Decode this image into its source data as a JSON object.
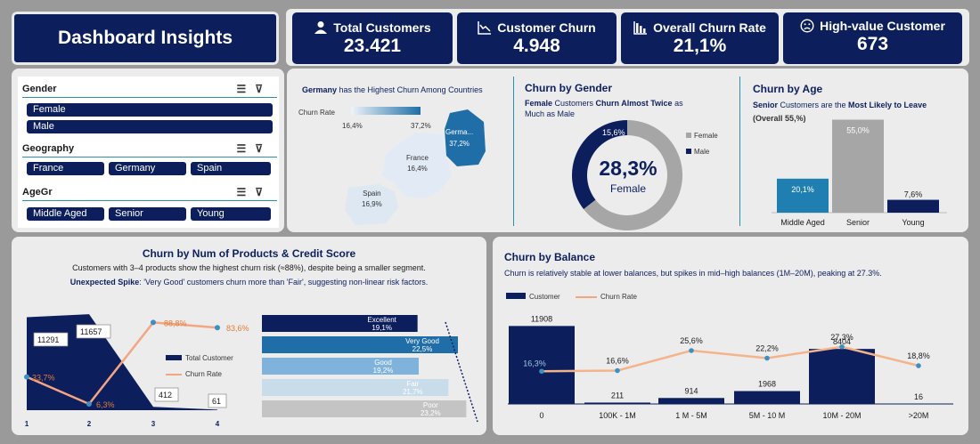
{
  "header": {
    "title": "Dashboard Insights"
  },
  "kpis": [
    {
      "label": "Total Customers",
      "value": "23.421",
      "icon": "person-icon"
    },
    {
      "label": "Customer Churn",
      "value": "4.948",
      "icon": "trend-down-icon"
    },
    {
      "label": "Overall Churn Rate",
      "value": "21,1%",
      "icon": "bar-chart-icon"
    },
    {
      "label": "High-value Customer",
      "value": "673",
      "icon": "sad-face-icon"
    }
  ],
  "slicers": {
    "gender": {
      "title": "Gender",
      "items": [
        "Female",
        "Male"
      ]
    },
    "geography": {
      "title": "Geography",
      "items": [
        "France",
        "Germany",
        "Spain"
      ]
    },
    "agegr": {
      "title": "AgeGr",
      "items": [
        "Middle Aged",
        "Senior",
        "Young"
      ]
    }
  },
  "map": {
    "title_bold": "Germany",
    "title_rest": " has the Highest Churn Among Countries",
    "legend_label": "Churn Rate",
    "legend_min": "16,4%",
    "legend_max": "37,2%",
    "regions": [
      {
        "name": "Germa...",
        "value": "37,2%"
      },
      {
        "name": "France",
        "value": "16,4%"
      },
      {
        "name": "Spain",
        "value": "16,9%"
      }
    ]
  },
  "gender_chart": {
    "title": "Churn by Gender",
    "sub_a": "Female",
    "sub_b": " Customers ",
    "sub_c": "Churn Almost Twice",
    "sub_d": " as",
    "sub_e": "Much as Male",
    "center_value": "28,3%",
    "center_label": "Female",
    "slice_label": "15,6%",
    "legend": [
      "Female",
      "Male"
    ]
  },
  "age_chart": {
    "title": "Churn by Age",
    "sub_a": "Senior",
    "sub_b": " Customers are the ",
    "sub_c": "Most Likely to Leave",
    "sub_d": "(Overall 55,%)"
  },
  "products_chart": {
    "title": "Churn by Num of Products & Credit Score",
    "line1": "Customers with 3–4 products show the highest churn risk (≈88%), despite being a smaller segment.",
    "line2_a": "Unexpected Spike",
    "line2_b": ": 'Very Good' customers churn more than 'Fair', suggesting non-linear risk factors.",
    "legend_total": "Total Customer",
    "legend_rate": "Churn Rate"
  },
  "balance_chart": {
    "title": "Churn by Balance",
    "sub_a": "Churn is ",
    "sub_b": "relatively stable at lower balances",
    "sub_c": ", but ",
    "sub_d": "spikes in mid–high balances (1M–20M)",
    "sub_e": ", peaking at 27.3%.",
    "legend_customer": "Customer",
    "legend_rate": "Churn Rate"
  },
  "chart_data": [
    {
      "type": "pie",
      "title": "Churn by Gender",
      "categories": [
        "Female",
        "Male"
      ],
      "values": [
        28.3,
        15.6
      ],
      "unit": "%"
    },
    {
      "type": "bar",
      "title": "Churn by Age",
      "categories": [
        "Middle Aged",
        "Senior",
        "Young"
      ],
      "values": [
        20.1,
        55.0,
        7.6
      ],
      "labels": [
        "20,1%",
        "55,0%",
        "7,6%"
      ],
      "colors": [
        "#1f7fb0",
        "#a6a6a6",
        "#0c1f5c"
      ],
      "ylim": [
        0,
        60
      ]
    },
    {
      "type": "line",
      "title": "Churn by Num of Products & Credit Score",
      "categories": [
        "1",
        "2",
        "3",
        "4"
      ],
      "series": [
        {
          "name": "Total Customer",
          "values": [
            11291,
            11657,
            412,
            61
          ],
          "labels": [
            "11291",
            "11657",
            "412",
            "61"
          ]
        },
        {
          "name": "Churn Rate",
          "values": [
            33.7,
            6.3,
            88.8,
            83.6
          ],
          "labels": [
            "33,7%",
            "6,3%",
            "88,8%",
            "83,6%"
          ]
        }
      ]
    },
    {
      "type": "bar",
      "title": "Churn by Credit Score",
      "categories": [
        "Excellent",
        "Very Good",
        "Good",
        "Fair",
        "Poor"
      ],
      "values": [
        19.1,
        22.5,
        19.2,
        21.7,
        23.2
      ],
      "labels": [
        "19,1%",
        "22,5%",
        "19,2%",
        "21,7%",
        "23,2%"
      ],
      "colors": [
        "#0c1f5c",
        "#1f6ea8",
        "#7fb3dc",
        "#c9dcea",
        "#c4c4c4"
      ]
    },
    {
      "type": "bar",
      "title": "Churn by Balance",
      "categories": [
        "0",
        "100K - 1M",
        "1 M - 5M",
        "5M - 10 M",
        "10M - 20M",
        ">20M"
      ],
      "series": [
        {
          "name": "Customer",
          "values": [
            11908,
            211,
            914,
            1968,
            8404,
            16
          ],
          "labels": [
            "11908",
            "211",
            "914",
            "1968",
            "8404",
            "16"
          ]
        },
        {
          "name": "Churn Rate",
          "values": [
            16.3,
            16.6,
            25.6,
            22.2,
            27.3,
            18.8
          ],
          "labels": [
            "16,3%",
            "16,6%",
            "25,6%",
            "22,2%",
            "27,3%",
            "18,8%"
          ]
        }
      ]
    }
  ]
}
